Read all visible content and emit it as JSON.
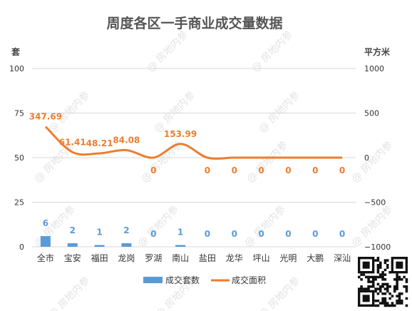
{
  "chart_data": {
    "type": "bar+line",
    "title": "周度各区一手商业成交量数据",
    "categories": [
      "全市",
      "宝安",
      "福田",
      "龙岗",
      "罗湖",
      "南山",
      "盐田",
      "龙华",
      "坪山",
      "光明",
      "大鹏",
      "深汕"
    ],
    "series": [
      {
        "name": "成交套数",
        "type": "bar",
        "axis": "left",
        "color": "#5b9bd5",
        "values": [
          6,
          2,
          1,
          2,
          0,
          1,
          0,
          0,
          0,
          0,
          0,
          0
        ],
        "labels": [
          "6",
          "2",
          "1",
          "2",
          "0",
          "1",
          "0",
          "0",
          "0",
          "0",
          "0",
          "0"
        ]
      },
      {
        "name": "成交面积",
        "type": "line",
        "smooth": true,
        "axis": "right",
        "color": "#ed7d31",
        "values": [
          347.69,
          61.41,
          48.21,
          84.08,
          0,
          153.99,
          0,
          0,
          0,
          0,
          0,
          0
        ],
        "labels": [
          "347.69",
          "61.41",
          "48.21",
          "84.08",
          "0",
          "153.99",
          "0",
          "0",
          "0",
          "0",
          "0",
          "0"
        ]
      }
    ],
    "y_left": {
      "label": "套",
      "range": [
        0,
        100
      ],
      "ticks": [
        0,
        25,
        50,
        75,
        100
      ],
      "tick_labels": [
        "0",
        "25",
        "50",
        "75",
        "100"
      ]
    },
    "y_right": {
      "label": "平方米",
      "range": [
        -1000,
        1000
      ],
      "ticks": [
        -1000,
        -500,
        0,
        500,
        1000
      ],
      "tick_labels": [
        "−1000",
        "−500",
        "0",
        "500",
        "1000"
      ]
    },
    "grid": true,
    "legend": "bottom"
  },
  "watermark": "@ 房地内参"
}
